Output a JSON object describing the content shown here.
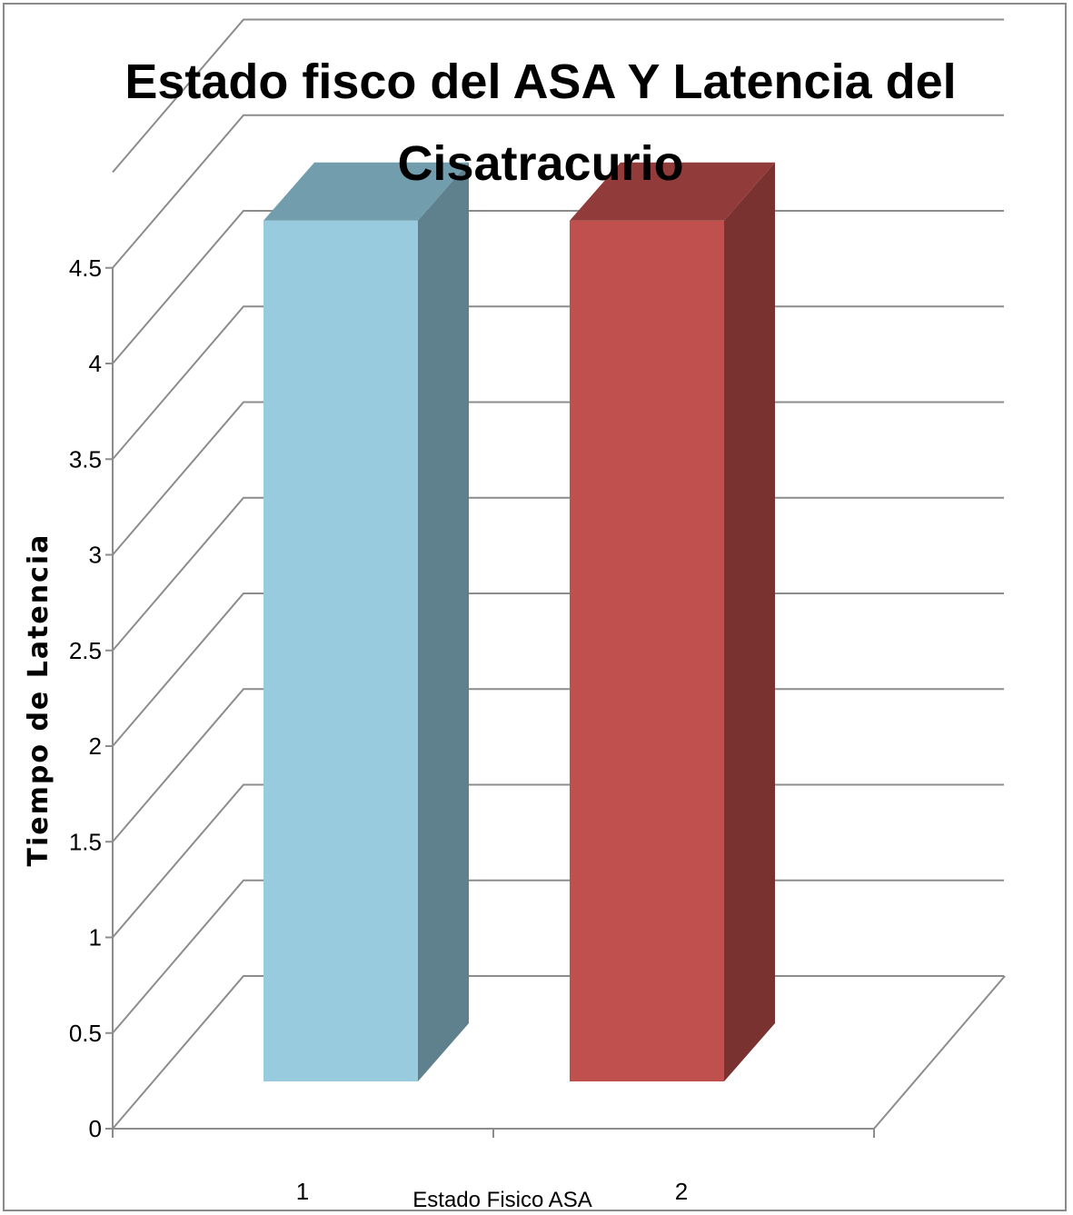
{
  "chart_data": {
    "type": "bar",
    "title_line1": "Estado fisco del ASA Y Latencia del",
    "title_line2": "Cisatracurio",
    "xlabel": "Estado Fisico ASA",
    "ylabel": "Tiempo de Latencia",
    "categories": [
      "1",
      "2"
    ],
    "values": [
      4.5,
      4.5
    ],
    "ylim": [
      0,
      4.5
    ],
    "yticks": [
      "0",
      "0.5",
      "1",
      "1.5",
      "2",
      "2.5",
      "3",
      "3.5",
      "4",
      "4.5"
    ],
    "bar_colors": [
      "#97cbdd",
      "#c0504d"
    ],
    "bar_side_colors": [
      "#5f818d",
      "#7a3230"
    ],
    "bar_top_colors": [
      "#729dac",
      "#913c3a"
    ],
    "grid": true,
    "style": "3d-column"
  }
}
